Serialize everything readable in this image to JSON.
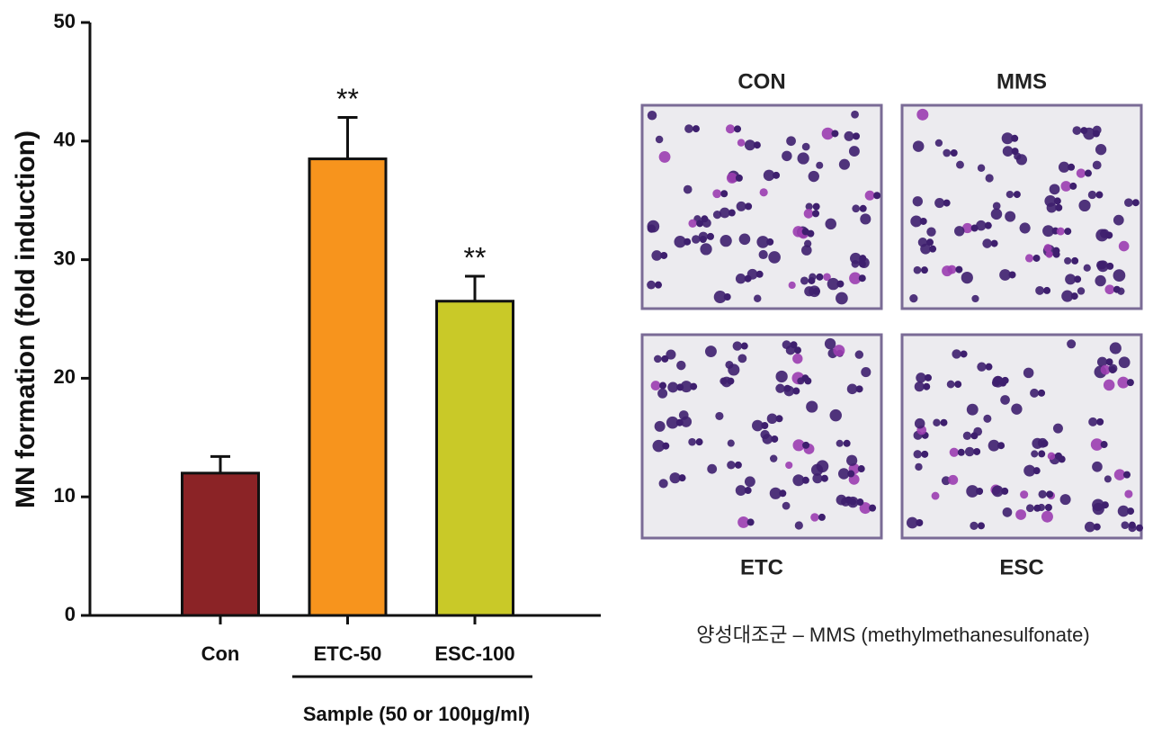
{
  "chart_data": {
    "type": "bar",
    "y_label": "MN formation (fold induction)",
    "x_label": "Sample (50 or 100µg/ml)",
    "categories": [
      "Con",
      "ETC-50",
      "ESC-100"
    ],
    "values": [
      12,
      38.5,
      26.5
    ],
    "errors": [
      1.4,
      3.5,
      2.1
    ],
    "colors": [
      "#8b2326",
      "#f7941d",
      "#c9c928"
    ],
    "annotations": [
      null,
      "**",
      "**"
    ],
    "ylim": [
      0,
      50
    ],
    "yticks": [
      0,
      10,
      20,
      30,
      40,
      50
    ]
  },
  "micrographs": {
    "panels": [
      "CON",
      "MMS",
      "ETC",
      "ESC"
    ],
    "caption": "양성대조군 – MMS (methylmethanesulfonate)"
  }
}
